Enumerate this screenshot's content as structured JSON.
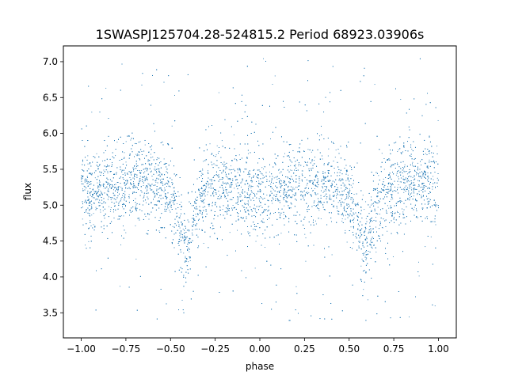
{
  "chart_data": {
    "type": "scatter",
    "title": "1SWASPJ125704.28-524815.2 Period 68923.03906s",
    "xlabel": "phase",
    "ylabel": "flux",
    "xlim": [
      -1.1,
      1.1
    ],
    "ylim": [
      3.15,
      7.22
    ],
    "xticks": [
      -1.0,
      -0.75,
      -0.5,
      -0.25,
      0.0,
      0.25,
      0.5,
      0.75,
      1.0
    ],
    "xtick_labels": [
      "−1.00",
      "−0.75",
      "−0.50",
      "−0.25",
      "0.00",
      "0.25",
      "0.50",
      "0.75",
      "1.00"
    ],
    "yticks": [
      3.5,
      4.0,
      4.5,
      5.0,
      5.5,
      6.0,
      6.5,
      7.0
    ],
    "ytick_labels": [
      "3.5",
      "4.0",
      "4.5",
      "5.0",
      "5.5",
      "6.0",
      "6.5",
      "7.0"
    ],
    "grid": false,
    "marker_color": "#1f77b4",
    "series": [
      {
        "phase_range": [
          -1.0,
          1.0
        ],
        "baseline_flux": 5.22,
        "scatter_sigma": 0.26,
        "primary_eclipse": {
          "phase": -0.41,
          "min_flux": 4.38
        },
        "secondary_eclipse": {
          "phase": 0.59,
          "min_flux": 4.42
        },
        "dense_band": [
          4.7,
          5.8
        ],
        "outlier_range": [
          3.35,
          7.05
        ],
        "points": [
          [
            -1.0,
            5.18
          ],
          [
            -0.95,
            5.15
          ],
          [
            -0.9,
            5.22
          ],
          [
            -0.85,
            5.26
          ],
          [
            -0.8,
            5.28
          ],
          [
            -0.75,
            5.3
          ],
          [
            -0.7,
            5.35
          ],
          [
            -0.65,
            5.36
          ],
          [
            -0.6,
            5.32
          ],
          [
            -0.55,
            5.25
          ],
          [
            -0.5,
            5.15
          ],
          [
            -0.47,
            4.9
          ],
          [
            -0.45,
            4.7
          ],
          [
            -0.43,
            4.52
          ],
          [
            -0.41,
            4.38
          ],
          [
            -0.39,
            4.55
          ],
          [
            -0.37,
            4.78
          ],
          [
            -0.34,
            5.05
          ],
          [
            -0.3,
            5.2
          ],
          [
            -0.25,
            5.26
          ],
          [
            -0.2,
            5.3
          ],
          [
            -0.15,
            5.28
          ],
          [
            -0.1,
            5.22
          ],
          [
            -0.05,
            5.17
          ],
          [
            0.0,
            5.15
          ],
          [
            0.05,
            5.16
          ],
          [
            0.1,
            5.2
          ],
          [
            0.15,
            5.25
          ],
          [
            0.2,
            5.28
          ],
          [
            0.25,
            5.3
          ],
          [
            0.3,
            5.32
          ],
          [
            0.35,
            5.32
          ],
          [
            0.4,
            5.3
          ],
          [
            0.45,
            5.22
          ],
          [
            0.5,
            5.1
          ],
          [
            0.53,
            4.88
          ],
          [
            0.55,
            4.7
          ],
          [
            0.57,
            4.52
          ],
          [
            0.59,
            4.42
          ],
          [
            0.61,
            4.55
          ],
          [
            0.63,
            4.78
          ],
          [
            0.66,
            5.0
          ],
          [
            0.7,
            5.15
          ],
          [
            0.75,
            5.25
          ],
          [
            0.8,
            5.28
          ],
          [
            0.85,
            5.3
          ],
          [
            0.9,
            5.28
          ],
          [
            0.95,
            5.25
          ],
          [
            1.0,
            5.22
          ]
        ]
      }
    ]
  }
}
